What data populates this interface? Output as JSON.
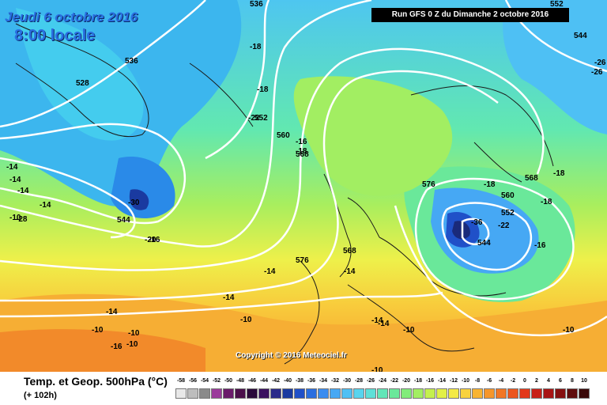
{
  "header": {
    "date": "Jeudi 6 octobre 2016",
    "time": "8:00 locale",
    "run": "Run GFS 0 Z du Dimanche 2 octobre 2016"
  },
  "copyright": "Copyright © 2016 Meteociel.fr",
  "legend": {
    "title": "Temp. et Geop. 500hPa (°C)",
    "subtitle": "(+ 102h)",
    "ticks": [
      "-58",
      "-56",
      "-54",
      "-52",
      "-50",
      "-48",
      "-46",
      "-44",
      "-42",
      "-40",
      "-38",
      "-36",
      "-34",
      "-32",
      "-30",
      "-28",
      "-26",
      "-24",
      "-22",
      "-20",
      "-18",
      "-16",
      "-14",
      "-12",
      "-10",
      "-8",
      "-6",
      "-4",
      "-2",
      "0",
      "2",
      "4",
      "6",
      "8",
      "10"
    ],
    "colors": [
      "#e8e8e8",
      "#bdbdbd",
      "#8a8a8a",
      "#9b3a9b",
      "#6a1b6a",
      "#4a0f4a",
      "#2a0a3a",
      "#3a1060",
      "#2a2a8a",
      "#1a3aa0",
      "#2050c8",
      "#2a6ee0",
      "#3a8cf0",
      "#46a8f4",
      "#4ec0f4",
      "#58d4ee",
      "#5ee0d8",
      "#62e6b8",
      "#6ae89a",
      "#82ec7a",
      "#a2ee62",
      "#c4f04e",
      "#e2f046",
      "#f4ea46",
      "#f8d23e",
      "#f8b432",
      "#f6962a",
      "#f27624",
      "#ec561e",
      "#e2381a",
      "#c82018",
      "#a81414",
      "#861010",
      "#600c0c",
      "#3a0808"
    ]
  },
  "map_labels": {
    "temperature": [
      "-18",
      "-18",
      "-22",
      "-16",
      "-26",
      "-26",
      "-18",
      "-14",
      "-14",
      "-14",
      "-14",
      "-30",
      "-28",
      "-20",
      "-18",
      "-18",
      "-18",
      "-36",
      "-22",
      "-16",
      "-14",
      "-14",
      "-14",
      "-14",
      "-10",
      "-10",
      "-10",
      "-10",
      "-10",
      "-10",
      "-10",
      "-10",
      "-14",
      "-16",
      "-16",
      "-14"
    ],
    "geopotential": [
      "536",
      "528",
      "544",
      "552",
      "560",
      "568",
      "576",
      "576",
      "568",
      "560",
      "552",
      "544",
      "568",
      "552",
      "536",
      "544"
    ]
  }
}
